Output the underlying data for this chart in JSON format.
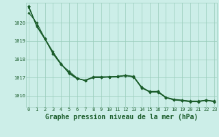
{
  "title": "Graphe pression niveau de la mer (hPa)",
  "background_color": "#cceee8",
  "grid_color": "#99ccbb",
  "line_color": "#1a5c2a",
  "xlim": [
    -0.3,
    23.3
  ],
  "ylim": [
    1015.4,
    1021.1
  ],
  "yticks": [
    1016,
    1017,
    1018,
    1019,
    1020
  ],
  "xticks": [
    0,
    1,
    2,
    3,
    4,
    5,
    6,
    7,
    8,
    9,
    10,
    11,
    12,
    13,
    14,
    15,
    16,
    17,
    18,
    19,
    20,
    21,
    22,
    23
  ],
  "lines": [
    [
      1020.9,
      1019.8,
      1019.1,
      1018.35,
      1017.75,
      1017.25,
      1016.95,
      1016.85,
      1017.0,
      1017.0,
      1017.05,
      1017.05,
      1017.1,
      1017.05,
      1016.45,
      1016.2,
      1016.2,
      1015.9,
      1015.8,
      1015.75,
      1015.7,
      1015.7,
      1015.75,
      1015.7
    ],
    [
      1020.9,
      1019.85,
      1019.15,
      1018.3,
      1017.72,
      1017.28,
      1016.97,
      1016.83,
      1017.02,
      1017.02,
      1017.03,
      1017.07,
      1017.12,
      1017.03,
      1016.48,
      1016.22,
      1016.25,
      1015.92,
      1015.82,
      1015.77,
      1015.72,
      1015.72,
      1015.77,
      1015.72
    ],
    [
      1020.55,
      1020.0,
      1019.15,
      1018.42,
      1017.73,
      1017.35,
      1016.98,
      1016.83,
      1017.05,
      1017.05,
      1017.05,
      1017.05,
      1017.13,
      1017.03,
      1016.42,
      1016.25,
      1016.25,
      1015.92,
      1015.78,
      1015.75,
      1015.7,
      1015.68,
      1015.75,
      1015.68
    ],
    [
      1020.85,
      1019.82,
      1019.13,
      1018.38,
      1017.78,
      1017.22,
      1016.93,
      1016.87,
      1017.03,
      1017.03,
      1017.03,
      1017.07,
      1017.13,
      1017.07,
      1016.47,
      1016.23,
      1016.23,
      1015.9,
      1015.78,
      1015.73,
      1015.68,
      1015.68,
      1015.78,
      1015.68
    ]
  ],
  "marker": "D",
  "marker_size": 1.8,
  "line_width": 0.8,
  "title_fontsize": 7,
  "tick_fontsize": 5.0,
  "figsize": [
    3.2,
    2.0
  ],
  "dpi": 100
}
